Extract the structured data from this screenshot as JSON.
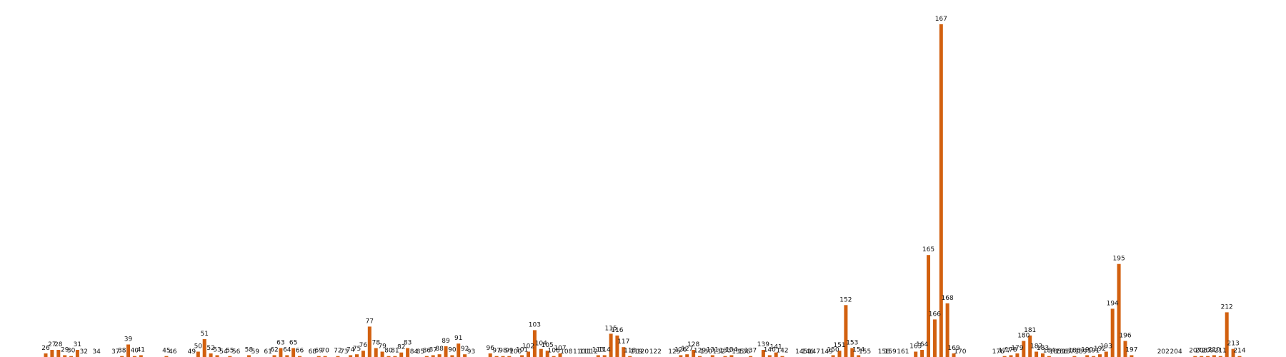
{
  "colors": {
    "bar": "#d2600f",
    "label": "#111111",
    "background": "#ffffff"
  },
  "chart_data": {
    "type": "bar",
    "grid": false,
    "axes_visible": false,
    "ylim": [
      0,
      190
    ],
    "bars": [
      {
        "label": "26",
        "value": 2
      },
      {
        "label": "27",
        "value": 4
      },
      {
        "label": "28",
        "value": 4
      },
      {
        "label": "29",
        "value": 1
      },
      {
        "label": "30",
        "value": 0.5
      },
      {
        "label": "31",
        "value": 4
      },
      {
        "label": "32",
        "value": 0
      },
      {
        "label": "34",
        "value": 0
      },
      {
        "label": "37",
        "value": 0
      },
      {
        "label": "38",
        "value": 0.5
      },
      {
        "label": "39",
        "value": 7
      },
      {
        "label": "40",
        "value": 0.5
      },
      {
        "label": "41",
        "value": 1
      },
      {
        "label": "45",
        "value": 0.5
      },
      {
        "label": "46",
        "value": 0
      },
      {
        "label": "49",
        "value": 0
      },
      {
        "label": "50",
        "value": 3
      },
      {
        "label": "51",
        "value": 10
      },
      {
        "label": "52",
        "value": 2
      },
      {
        "label": "53",
        "value": 1
      },
      {
        "label": "54",
        "value": 0
      },
      {
        "label": "55",
        "value": 0.5
      },
      {
        "label": "56",
        "value": 0
      },
      {
        "label": "58",
        "value": 1
      },
      {
        "label": "59",
        "value": 0
      },
      {
        "label": "61",
        "value": 0
      },
      {
        "label": "62",
        "value": 1
      },
      {
        "label": "63",
        "value": 5
      },
      {
        "label": "64",
        "value": 1
      },
      {
        "label": "65",
        "value": 5
      },
      {
        "label": "66",
        "value": 0.5
      },
      {
        "label": "68",
        "value": 0
      },
      {
        "label": "69",
        "value": 0.5
      },
      {
        "label": "70",
        "value": 0.5
      },
      {
        "label": "72",
        "value": 0.5
      },
      {
        "label": "73",
        "value": 0
      },
      {
        "label": "74",
        "value": 1
      },
      {
        "label": "75",
        "value": 1.5
      },
      {
        "label": "76",
        "value": 3.5
      },
      {
        "label": "77",
        "value": 17
      },
      {
        "label": "78",
        "value": 5
      },
      {
        "label": "79",
        "value": 3
      },
      {
        "label": "80",
        "value": 0.5
      },
      {
        "label": "81",
        "value": 0.5
      },
      {
        "label": "82",
        "value": 2.5
      },
      {
        "label": "83",
        "value": 5
      },
      {
        "label": "84",
        "value": 0
      },
      {
        "label": "85",
        "value": 0
      },
      {
        "label": "86",
        "value": 0.5
      },
      {
        "label": "87",
        "value": 1
      },
      {
        "label": "88",
        "value": 1.5
      },
      {
        "label": "89",
        "value": 6
      },
      {
        "label": "90",
        "value": 1
      },
      {
        "label": "91",
        "value": 7.5
      },
      {
        "label": "92",
        "value": 1.5
      },
      {
        "label": "93",
        "value": 0
      },
      {
        "label": "96",
        "value": 2
      },
      {
        "label": "97",
        "value": 0.5
      },
      {
        "label": "98",
        "value": 0.5
      },
      {
        "label": "99",
        "value": 0.5
      },
      {
        "label": "100",
        "value": 0
      },
      {
        "label": "101",
        "value": 1
      },
      {
        "label": "102",
        "value": 3
      },
      {
        "label": "103",
        "value": 15
      },
      {
        "label": "104",
        "value": 4.5
      },
      {
        "label": "105",
        "value": 3.5
      },
      {
        "label": "106",
        "value": 0.5
      },
      {
        "label": "107",
        "value": 2
      },
      {
        "label": "108",
        "value": 0
      },
      {
        "label": "110",
        "value": 0
      },
      {
        "label": "111",
        "value": 0
      },
      {
        "label": "112",
        "value": 0
      },
      {
        "label": "113",
        "value": 1
      },
      {
        "label": "114",
        "value": 1
      },
      {
        "label": "115",
        "value": 13
      },
      {
        "label": "116",
        "value": 12
      },
      {
        "label": "117",
        "value": 5.5
      },
      {
        "label": "118",
        "value": 0.5
      },
      {
        "label": "119",
        "value": 0
      },
      {
        "label": "120",
        "value": 0
      },
      {
        "label": "122",
        "value": 0
      },
      {
        "label": "125",
        "value": 0
      },
      {
        "label": "126",
        "value": 1
      },
      {
        "label": "127",
        "value": 1.5
      },
      {
        "label": "128",
        "value": 4
      },
      {
        "label": "129",
        "value": 0.5
      },
      {
        "label": "130",
        "value": 0
      },
      {
        "label": "131",
        "value": 1
      },
      {
        "label": "132",
        "value": 0
      },
      {
        "label": "133",
        "value": 0.5
      },
      {
        "label": "134",
        "value": 1
      },
      {
        "label": "135",
        "value": 0
      },
      {
        "label": "136",
        "value": 0
      },
      {
        "label": "137",
        "value": 0.5
      },
      {
        "label": "139",
        "value": 4
      },
      {
        "label": "140",
        "value": 1
      },
      {
        "label": "141",
        "value": 2.5
      },
      {
        "label": "142",
        "value": 0.5
      },
      {
        "label": "145",
        "value": 0
      },
      {
        "label": "146",
        "value": 0
      },
      {
        "label": "147",
        "value": 0
      },
      {
        "label": "149",
        "value": 0
      },
      {
        "label": "150",
        "value": 1
      },
      {
        "label": "151",
        "value": 3.5
      },
      {
        "label": "152",
        "value": 29
      },
      {
        "label": "153",
        "value": 5
      },
      {
        "label": "154",
        "value": 1
      },
      {
        "label": "155",
        "value": 0
      },
      {
        "label": "158",
        "value": 0
      },
      {
        "label": "159",
        "value": 0
      },
      {
        "label": "161",
        "value": 0
      },
      {
        "label": "163",
        "value": 3
      },
      {
        "label": "164",
        "value": 4
      },
      {
        "label": "165",
        "value": 57
      },
      {
        "label": "166",
        "value": 21
      },
      {
        "label": "167",
        "value": 186
      },
      {
        "label": "168",
        "value": 30
      },
      {
        "label": "169",
        "value": 2
      },
      {
        "label": "170",
        "value": 0
      },
      {
        "label": "176",
        "value": 0
      },
      {
        "label": "177",
        "value": 0.5
      },
      {
        "label": "178",
        "value": 1
      },
      {
        "label": "179",
        "value": 2
      },
      {
        "label": "180",
        "value": 9
      },
      {
        "label": "181",
        "value": 12
      },
      {
        "label": "182",
        "value": 3
      },
      {
        "label": "183",
        "value": 2
      },
      {
        "label": "184",
        "value": 0.5
      },
      {
        "label": "185",
        "value": 0
      },
      {
        "label": "186",
        "value": 0
      },
      {
        "label": "187",
        "value": 0
      },
      {
        "label": "188",
        "value": 0.5
      },
      {
        "label": "189",
        "value": 0
      },
      {
        "label": "190",
        "value": 1
      },
      {
        "label": "191",
        "value": 0.5
      },
      {
        "label": "192",
        "value": 1.5
      },
      {
        "label": "193",
        "value": 3
      },
      {
        "label": "194",
        "value": 27
      },
      {
        "label": "195",
        "value": 52
      },
      {
        "label": "196",
        "value": 9
      },
      {
        "label": "197",
        "value": 1
      },
      {
        "label": "202",
        "value": 0
      },
      {
        "label": "204",
        "value": 0
      },
      {
        "label": "207",
        "value": 0.5
      },
      {
        "label": "208",
        "value": 0.5
      },
      {
        "label": "209",
        "value": 0.5
      },
      {
        "label": "210",
        "value": 1
      },
      {
        "label": "211",
        "value": 0.5
      },
      {
        "label": "212",
        "value": 25
      },
      {
        "label": "213",
        "value": 4.5
      },
      {
        "label": "214",
        "value": 0.5
      }
    ]
  }
}
